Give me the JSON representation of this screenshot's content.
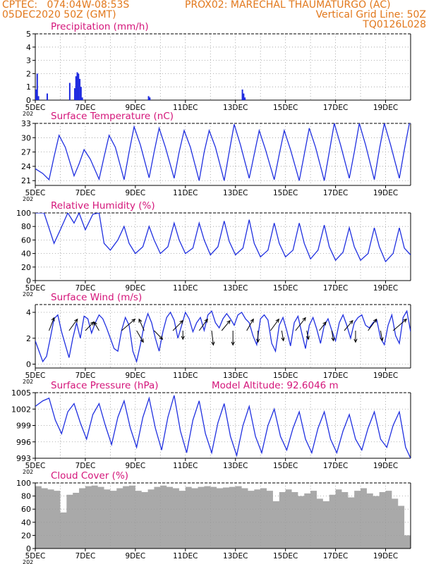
{
  "header": {
    "left_line1": "CPTEC:   074:04W-08:53S",
    "left_line2": "05DEC2020 50Z (GMT)",
    "center_line1": "PROX02: MARECHAL THAUMATURGO (AC)",
    "right_line2": "Vertical Grid Line: 50Z",
    "right_line3": "TQ0126L028"
  },
  "colors": {
    "header": "#e2781c",
    "panel_title": "#d4157a",
    "series_line": "#2030e0",
    "bars_precip": "#1f2be0",
    "cloud_fill": "#a9a9a9",
    "wind_arrow": "#000000"
  },
  "x_axis": {
    "tick_labels": [
      "5DEC",
      "7DEC",
      "9DEC",
      "11DEC",
      "13DEC",
      "15DEC",
      "17DEC",
      "19DEC"
    ],
    "tick_days": [
      5,
      7,
      9,
      11,
      13,
      15,
      17,
      19
    ],
    "range_days": [
      5,
      20
    ],
    "year_fragment": "202"
  },
  "chart_data": [
    {
      "type": "bar",
      "title": "Precipitation (mm/h)",
      "ylim": [
        0,
        5
      ],
      "yticks": [
        "0",
        "1",
        "2",
        "3",
        "4",
        "5"
      ],
      "grid": true,
      "x": [
        5.0,
        5.05,
        5.1,
        5.45,
        6.35,
        6.55,
        6.6,
        6.65,
        6.7,
        6.75,
        6.8,
        6.85,
        9.5,
        9.55,
        13.25,
        13.3,
        13.35
      ],
      "values": [
        0.8,
        2.0,
        0.3,
        0.5,
        1.3,
        0.9,
        1.8,
        2.1,
        2.0,
        1.6,
        1.0,
        0.2,
        0.3,
        0.2,
        0.8,
        0.5,
        0.2
      ]
    },
    {
      "type": "line",
      "title": "Surface Temperature (nC)",
      "ylim": [
        20,
        33
      ],
      "yticks": [
        "21",
        "24",
        "27",
        "30",
        "33"
      ],
      "grid": true,
      "x": [
        5.0,
        5.3,
        5.55,
        5.75,
        5.95,
        6.2,
        6.55,
        6.75,
        6.95,
        7.2,
        7.55,
        7.75,
        7.95,
        8.2,
        8.55,
        8.75,
        8.95,
        9.2,
        9.55,
        9.75,
        9.95,
        10.2,
        10.55,
        10.75,
        10.95,
        11.2,
        11.55,
        11.75,
        11.95,
        12.2,
        12.55,
        12.75,
        12.95,
        13.2,
        13.55,
        13.75,
        13.95,
        14.2,
        14.55,
        14.75,
        14.95,
        15.2,
        15.55,
        15.75,
        15.95,
        16.2,
        16.55,
        16.75,
        16.95,
        17.2,
        17.55,
        17.75,
        17.95,
        18.2,
        18.55,
        18.75,
        18.95,
        19.2,
        19.55,
        19.75,
        19.95,
        20.0
      ],
      "values": [
        23.5,
        22.5,
        21.2,
        26,
        30.5,
        28,
        22,
        24.5,
        27.5,
        25.5,
        21.3,
        26,
        30.5,
        28,
        21.2,
        27,
        32.3,
        28.5,
        21.6,
        27,
        32,
        28,
        21.5,
        27,
        31.5,
        28,
        21,
        27,
        31.5,
        28,
        21,
        27,
        32.8,
        28.5,
        21.5,
        26.5,
        31.5,
        27.5,
        21.2,
        26.5,
        31.5,
        27.5,
        21,
        26.5,
        32,
        28,
        21,
        27,
        33,
        28.5,
        21.5,
        27,
        33,
        28.5,
        21.2,
        27.5,
        33,
        28.5,
        21.5,
        27.5,
        33,
        33
      ]
    },
    {
      "type": "line",
      "title": "Relative Humidity (%)",
      "ylim": [
        0,
        100
      ],
      "yticks": [
        "0",
        "20",
        "40",
        "60",
        "80",
        "100"
      ],
      "grid": true,
      "x": [
        5.0,
        5.35,
        5.75,
        6.0,
        6.3,
        6.55,
        6.75,
        7.0,
        7.3,
        7.55,
        7.75,
        8.0,
        8.3,
        8.55,
        8.75,
        9.0,
        9.3,
        9.55,
        9.75,
        10.0,
        10.3,
        10.55,
        10.75,
        11.0,
        11.3,
        11.55,
        11.75,
        12.0,
        12.3,
        12.55,
        12.75,
        13.0,
        13.3,
        13.55,
        13.75,
        14.0,
        14.3,
        14.55,
        14.75,
        15.0,
        15.3,
        15.55,
        15.75,
        16.0,
        16.3,
        16.55,
        16.75,
        17.0,
        17.3,
        17.55,
        17.75,
        18.0,
        18.3,
        18.55,
        18.75,
        19.0,
        19.3,
        19.55,
        19.75,
        20.0
      ],
      "values": [
        100,
        100,
        55,
        75,
        100,
        85,
        100,
        75,
        98,
        100,
        55,
        45,
        60,
        80,
        55,
        40,
        50,
        80,
        60,
        40,
        50,
        85,
        60,
        40,
        48,
        85,
        60,
        38,
        50,
        88,
        58,
        38,
        48,
        90,
        55,
        35,
        45,
        85,
        55,
        35,
        45,
        85,
        55,
        32,
        45,
        82,
        50,
        30,
        42,
        78,
        50,
        30,
        40,
        78,
        50,
        28,
        40,
        78,
        48,
        38
      ]
    },
    {
      "type": "line",
      "title": "Surface Wind (m/s)",
      "ylim": [
        -0.3,
        4.6
      ],
      "yticks": [
        "0",
        "2",
        "4"
      ],
      "grid": true,
      "x": [
        5.0,
        5.15,
        5.3,
        5.45,
        5.6,
        5.75,
        5.9,
        6.05,
        6.2,
        6.35,
        6.5,
        6.65,
        6.8,
        6.95,
        7.1,
        7.25,
        7.4,
        7.55,
        7.7,
        7.85,
        8.0,
        8.15,
        8.3,
        8.45,
        8.6,
        8.75,
        8.9,
        9.05,
        9.2,
        9.35,
        9.5,
        9.65,
        9.8,
        9.95,
        10.1,
        10.25,
        10.4,
        10.55,
        10.7,
        10.85,
        11.0,
        11.15,
        11.3,
        11.45,
        11.6,
        11.75,
        11.9,
        12.05,
        12.2,
        12.35,
        12.5,
        12.65,
        12.8,
        12.95,
        13.1,
        13.25,
        13.4,
        13.55,
        13.7,
        13.85,
        14.0,
        14.15,
        14.3,
        14.45,
        14.6,
        14.75,
        14.9,
        15.05,
        15.2,
        15.35,
        15.5,
        15.65,
        15.8,
        15.95,
        16.1,
        16.25,
        16.4,
        16.55,
        16.7,
        16.85,
        17.0,
        17.15,
        17.3,
        17.45,
        17.6,
        17.75,
        17.9,
        18.05,
        18.2,
        18.35,
        18.5,
        18.65,
        18.8,
        18.95,
        19.1,
        19.25,
        19.4,
        19.55,
        19.7,
        19.85,
        20.0
      ],
      "values": [
        1.8,
        1.0,
        0.2,
        0.6,
        2.0,
        3.5,
        3.8,
        2.5,
        1.5,
        0.5,
        2.0,
        3.2,
        2.0,
        3.7,
        3.5,
        2.4,
        3.2,
        3.8,
        3.5,
        2.8,
        2.0,
        1.2,
        1.0,
        2.6,
        3.6,
        3.0,
        1.0,
        0.2,
        1.5,
        3.0,
        3.9,
        3.2,
        2.0,
        1.0,
        2.5,
        3.6,
        4.0,
        3.4,
        2.0,
        3.0,
        4.0,
        3.5,
        2.5,
        3.2,
        3.6,
        2.6,
        3.8,
        4.1,
        3.2,
        2.8,
        3.5,
        3.9,
        3.5,
        3.0,
        3.8,
        4.0,
        3.5,
        3.2,
        2.2,
        1.5,
        3.5,
        3.8,
        3.4,
        1.6,
        1.0,
        3.0,
        3.6,
        2.6,
        1.4,
        3.2,
        3.7,
        2.4,
        1.2,
        3.0,
        3.6,
        2.7,
        1.6,
        3.0,
        3.5,
        2.6,
        1.8,
        3.2,
        3.8,
        3.0,
        2.0,
        3.2,
        3.6,
        3.8,
        3.0,
        2.8,
        3.2,
        3.4,
        2.0,
        1.5,
        3.0,
        3.8,
        2.2,
        1.6,
        3.6,
        4.1,
        2.5
      ]
    },
    {
      "type": "line",
      "title": "Surface Pressure (hPa)",
      "annotation": "Model Altitude: 92.6046 m",
      "ylim": [
        993,
        1005
      ],
      "yticks": [
        "993",
        "996",
        "999",
        "1002",
        "1005"
      ],
      "grid": true,
      "x": [
        5.0,
        5.3,
        5.55,
        5.8,
        6.05,
        6.3,
        6.55,
        6.8,
        7.05,
        7.3,
        7.55,
        7.8,
        8.05,
        8.3,
        8.55,
        8.8,
        9.05,
        9.3,
        9.55,
        9.8,
        10.05,
        10.3,
        10.55,
        10.8,
        11.05,
        11.3,
        11.55,
        11.8,
        12.05,
        12.3,
        12.55,
        12.8,
        13.05,
        13.3,
        13.55,
        13.8,
        14.05,
        14.3,
        14.55,
        14.8,
        15.05,
        15.3,
        15.55,
        15.8,
        16.05,
        16.3,
        16.55,
        16.8,
        17.05,
        17.3,
        17.55,
        17.8,
        18.05,
        18.3,
        18.55,
        18.8,
        19.05,
        19.3,
        19.55,
        19.8,
        20.0
      ],
      "values": [
        1002.5,
        1003.5,
        1004.0,
        1000.0,
        997.5,
        1001.5,
        1003.0,
        999.5,
        996.5,
        1001.0,
        1003.0,
        999.0,
        995.5,
        1000.5,
        1003.5,
        998.5,
        995.0,
        1000.5,
        1004.0,
        998.5,
        994.5,
        1000.5,
        1004.5,
        998.0,
        994.0,
        1000.0,
        1003.5,
        997.5,
        994.0,
        999.5,
        1003.0,
        997.0,
        993.5,
        999.0,
        1002.5,
        997.0,
        994.0,
        999.0,
        1002.0,
        997.0,
        994.5,
        998.5,
        1001.5,
        996.5,
        994.0,
        998.5,
        1001.5,
        996.5,
        994.0,
        998.0,
        1001.0,
        996.5,
        994.5,
        998.5,
        1001.5,
        996.5,
        995.0,
        999.0,
        1001.5,
        995.0,
        993.0
      ]
    },
    {
      "type": "bar",
      "title": "Cloud Cover (%)",
      "ylim": [
        0,
        100
      ],
      "yticks": [
        "0",
        "20",
        "40",
        "60",
        "80",
        "100"
      ],
      "grid": true,
      "x": [
        5.0,
        5.25,
        5.5,
        5.75,
        6.0,
        6.25,
        6.5,
        6.75,
        7.0,
        7.25,
        7.5,
        7.75,
        8.0,
        8.25,
        8.5,
        8.75,
        9.0,
        9.25,
        9.5,
        9.75,
        10.0,
        10.25,
        10.5,
        10.75,
        11.0,
        11.25,
        11.5,
        11.75,
        12.0,
        12.25,
        12.5,
        12.75,
        13.0,
        13.25,
        13.5,
        13.75,
        14.0,
        14.25,
        14.5,
        14.75,
        15.0,
        15.25,
        15.5,
        15.75,
        16.0,
        16.25,
        16.5,
        16.75,
        17.0,
        17.25,
        17.5,
        17.75,
        18.0,
        18.25,
        18.5,
        18.75,
        19.0,
        19.25,
        19.5,
        19.75,
        20.0
      ],
      "values": [
        95,
        92,
        90,
        88,
        55,
        82,
        85,
        92,
        95,
        96,
        94,
        90,
        88,
        92,
        95,
        96,
        88,
        86,
        90,
        94,
        96,
        94,
        92,
        88,
        94,
        92,
        94,
        95,
        94,
        92,
        93,
        94,
        95,
        92,
        88,
        90,
        92,
        88,
        72,
        86,
        90,
        86,
        80,
        84,
        88,
        76,
        72,
        82,
        90,
        86,
        78,
        88,
        92,
        84,
        80,
        86,
        88,
        76,
        65,
        20,
        100
      ]
    }
  ],
  "wind_vectors": {
    "x": [
      5.55,
      6.35,
      7.0,
      7.55,
      8.45,
      9.05,
      9.35,
      9.75,
      10.5,
      10.9,
      11.55,
      12.05,
      12.45,
      12.9,
      13.45,
      13.9,
      14.4,
      14.85,
      15.4,
      15.85,
      16.35,
      16.85,
      17.35,
      17.8,
      18.3,
      18.8,
      19.3
    ],
    "u": [
      0.3,
      0.5,
      0.5,
      -0.3,
      0.8,
      0.4,
      -0.3,
      0.5,
      0.6,
      0.0,
      0.5,
      0.1,
      0.5,
      0.0,
      0.4,
      0.0,
      0.5,
      0.1,
      0.6,
      0.1,
      0.4,
      0.1,
      0.5,
      0.0,
      0.5,
      0.1,
      0.8
    ],
    "v": [
      0.9,
      0.8,
      0.6,
      0.6,
      0.8,
      -0.8,
      0.8,
      -0.6,
      0.7,
      -0.6,
      0.8,
      -1.0,
      0.7,
      -1.0,
      0.8,
      -0.8,
      0.8,
      -0.7,
      0.9,
      -0.6,
      0.6,
      -0.7,
      0.7,
      -0.8,
      0.8,
      -0.7,
      0.8
    ]
  }
}
